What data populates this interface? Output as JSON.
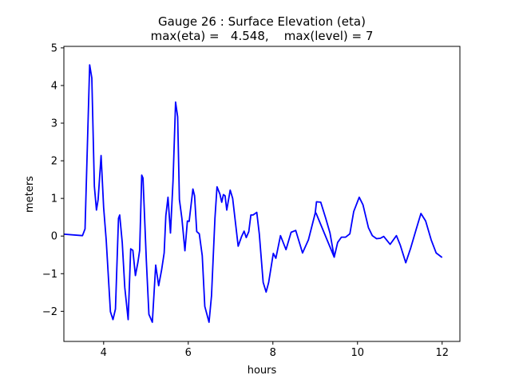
{
  "chart_data": {
    "type": "line",
    "title": "Gauge 26 : Surface Elevation (eta)",
    "subtitle": "max(eta) =   4.548,    max(level) = 7",
    "xlabel": "hours",
    "ylabel": "meters",
    "xlim": [
      3.06,
      12.42
    ],
    "ylim": [
      -2.8,
      5.04
    ],
    "xticks": [
      4,
      6,
      8,
      10,
      12
    ],
    "yticks": [
      -2,
      -1,
      0,
      1,
      2,
      3,
      4,
      5
    ],
    "grid": false,
    "line_color": "#0000ff",
    "series": [
      {
        "x": [
          3.06,
          3.5,
          3.56,
          3.67,
          3.72,
          3.78,
          3.83,
          3.87,
          3.94,
          4.0,
          4.06,
          4.16,
          4.22,
          4.28,
          4.35,
          4.38,
          4.44,
          4.5,
          4.58,
          4.64,
          4.69,
          4.75,
          4.81,
          4.85,
          4.9,
          4.93,
          5.01,
          5.07,
          5.15,
          5.23,
          5.3,
          5.37,
          5.43,
          5.47,
          5.52,
          5.58,
          5.64,
          5.7,
          5.75,
          5.79,
          5.85,
          5.92,
          5.98,
          6.02,
          6.11,
          6.15,
          6.2,
          6.26,
          6.33,
          6.39,
          6.49,
          6.55,
          6.63,
          6.68,
          6.75,
          6.79,
          6.83,
          6.87,
          6.91,
          6.99,
          7.05,
          7.18,
          7.26,
          7.32,
          7.37,
          7.43,
          7.48,
          7.53,
          7.62,
          7.68,
          7.77,
          7.84,
          7.9,
          8.01,
          8.07,
          8.18,
          8.31,
          8.43,
          8.54,
          8.7,
          8.84,
          9.0,
          9.03,
          9.13,
          9.25,
          9.35,
          9.45,
          9.02,
          9.45,
          9.53,
          9.62,
          9.72,
          9.82,
          9.91,
          10.04,
          10.13,
          10.26,
          10.35,
          10.45,
          10.54,
          10.62,
          10.77,
          10.92,
          11.01,
          11.14,
          11.26,
          11.39,
          11.5,
          11.61,
          11.74,
          11.86,
          12.0
        ],
        "y": [
          0.05,
          0.01,
          0.19,
          4.55,
          4.2,
          1.32,
          0.69,
          0.97,
          2.14,
          0.76,
          -0.1,
          -2.01,
          -2.22,
          -1.94,
          0.47,
          0.56,
          -0.17,
          -1.37,
          -2.22,
          -0.34,
          -0.38,
          -1.05,
          -0.7,
          -0.38,
          1.62,
          1.54,
          -0.66,
          -2.08,
          -2.29,
          -0.77,
          -1.32,
          -0.9,
          -0.45,
          0.54,
          1.03,
          0.08,
          1.46,
          3.56,
          3.17,
          0.97,
          0.47,
          -0.39,
          0.4,
          0.39,
          1.25,
          1.07,
          0.12,
          0.06,
          -0.52,
          -1.87,
          -2.29,
          -1.59,
          0.47,
          1.31,
          1.11,
          0.9,
          1.1,
          1.07,
          0.69,
          1.22,
          1.0,
          -0.27,
          -0.01,
          0.13,
          -0.04,
          0.12,
          0.56,
          0.56,
          0.63,
          0.05,
          -1.23,
          -1.49,
          -1.23,
          -0.46,
          -0.59,
          0.01,
          -0.36,
          0.1,
          0.15,
          -0.45,
          -0.1,
          0.61,
          0.91,
          0.9,
          0.47,
          0.08,
          -0.56,
          0.61,
          -0.56,
          -0.17,
          -0.03,
          -0.03,
          0.06,
          0.65,
          1.03,
          0.83,
          0.22,
          0.01,
          -0.07,
          -0.06,
          -0.01,
          -0.22,
          0.01,
          -0.24,
          -0.71,
          -0.31,
          0.19,
          0.6,
          0.4,
          -0.1,
          -0.45,
          -0.57
        ]
      }
    ]
  }
}
